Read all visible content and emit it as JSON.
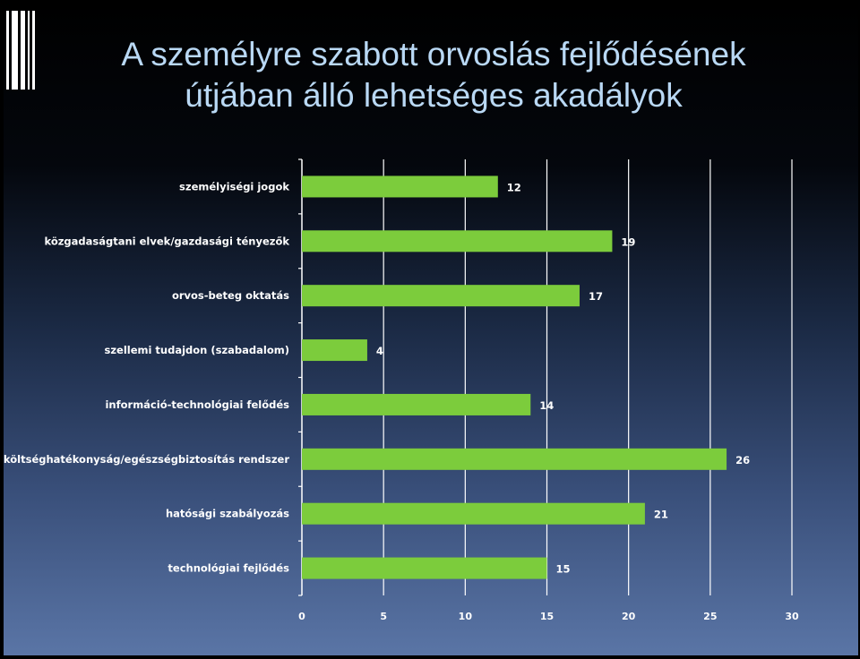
{
  "slide": {
    "title_line1": "A személyre szabott orvoslás fejlődésének",
    "title_line2": "útjában álló lehetséges akadályok"
  },
  "colors": {
    "bar": "#7ccc3c",
    "grid": "#ffffff",
    "title": "#b9d8f4",
    "text": "#ffffff"
  },
  "chart_data": {
    "type": "bar",
    "orientation": "horizontal",
    "title": "",
    "xlabel": "",
    "ylabel": "",
    "xlim": [
      0,
      30
    ],
    "ticks": [
      0,
      5,
      10,
      15,
      20,
      25,
      30
    ],
    "grid": true,
    "legend": "none",
    "categories": [
      "személyiségi jogok",
      "közgadaságtani elvek/gazdasági tényezők",
      "orvos-beteg oktatás",
      "szellemi tudajdon (szabadalom)",
      "információ-technológiai felődés",
      "költséghatékonyság/egészségbiztosítás rendszer",
      "hatósági szabályozás",
      "technológiai fejlődés"
    ],
    "values": [
      12,
      19,
      17,
      4,
      14,
      26,
      21,
      15
    ]
  }
}
